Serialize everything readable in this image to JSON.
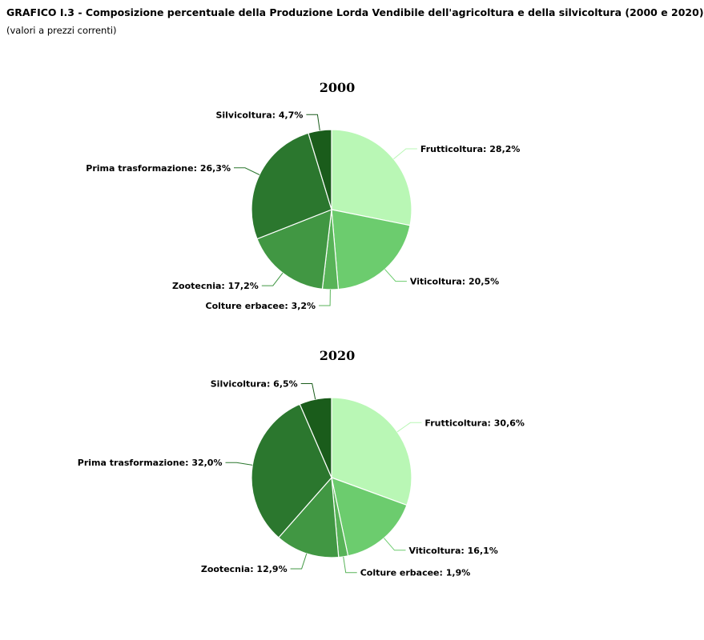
{
  "header": {
    "title": "GRAFICO I.3 - Composizione percentuale della Produzione Lorda Vendibile dell'agricoltura e della silvicoltura (2000 e 2020)",
    "subtitle": "(valori a prezzi correnti)"
  },
  "colors": {
    "Frutticoltura": "#b9f7b5",
    "Viticoltura": "#6ccc6e",
    "Colture erbacee": "#58b358",
    "Zootecnia": "#419743",
    "Prima trasformazione": "#2b772e",
    "Silvicoltura": "#1a5c1b"
  },
  "chart_data": [
    {
      "type": "pie",
      "title": "2000",
      "categories": [
        "Frutticoltura",
        "Viticoltura",
        "Colture erbacee",
        "Zootecnia",
        "Prima trasformazione",
        "Silvicoltura"
      ],
      "values": [
        28.2,
        20.5,
        3.2,
        17.2,
        26.3,
        4.7
      ],
      "labels": [
        "Frutticoltura: 28,2%",
        "Viticoltura: 20,5%",
        "Colture erbacee: 3,2%",
        "Zootecnia: 17,2%",
        "Prima trasformazione: 26,3%",
        "Silvicoltura: 4,7%"
      ]
    },
    {
      "type": "pie",
      "title": "2020",
      "categories": [
        "Frutticoltura",
        "Viticoltura",
        "Colture erbacee",
        "Zootecnia",
        "Prima trasformazione",
        "Silvicoltura"
      ],
      "values": [
        30.6,
        16.1,
        1.9,
        12.9,
        32.0,
        6.5
      ],
      "labels": [
        "Frutticoltura: 30,6%",
        "Viticoltura: 16,1%",
        "Colture erbacee: 1,9%",
        "Zootecnia: 12,9%",
        "Prima trasformazione: 32,0%",
        "Silvicoltura: 6,5%"
      ]
    }
  ]
}
